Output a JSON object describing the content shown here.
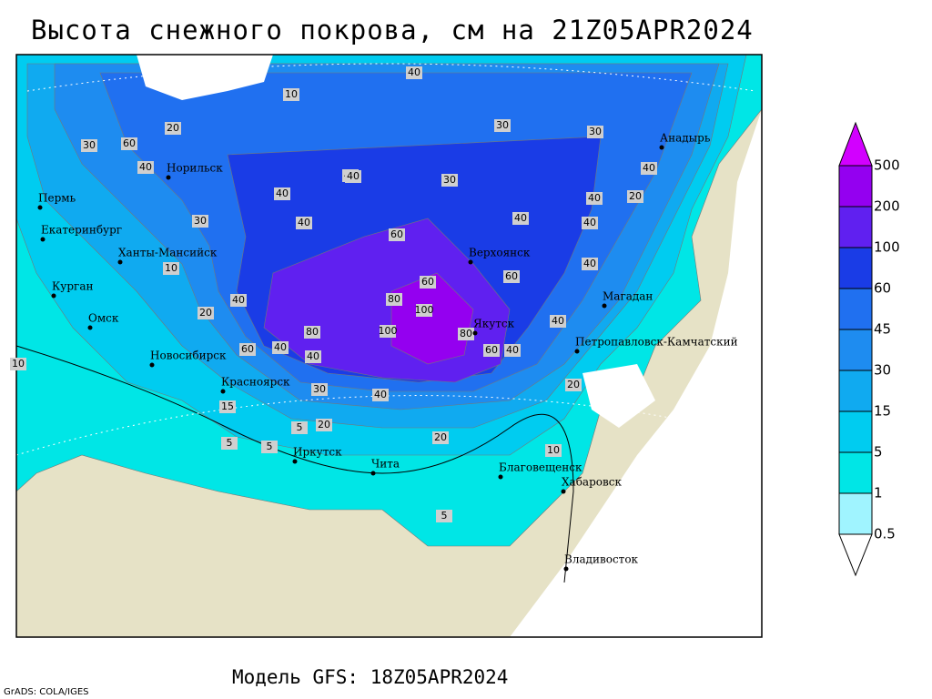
{
  "header": {
    "title": "Высота снежного покрова, см на 21Z05APR2024"
  },
  "footer": {
    "model": "Модель GFS: 18Z05APR2024",
    "credit": "GrADS: COLA/IGES"
  },
  "legend": {
    "levels": [
      0.5,
      1,
      5,
      15,
      30,
      45,
      60,
      100,
      200,
      500
    ],
    "colors": [
      "#ffffff",
      "#a0f4ff",
      "#00e6e6",
      "#00ccf0",
      "#10aaf0",
      "#1e8cf0",
      "#2070f0",
      "#1a3ce6",
      "#6020f0",
      "#9400f0",
      "#d200ff"
    ]
  },
  "map": {
    "cities": [
      "Норильск",
      "Пермь",
      "Екатеринбург",
      "Ханты-Мансийск",
      "Курган",
      "Омск",
      "Новосибирск",
      "Красноярск",
      "Иркутск",
      "Чита",
      "Благовещенск",
      "Хабаровск",
      "Владивосток",
      "Верхоянск",
      "Якутск",
      "Магадан",
      "Петропавловск-Камчатский",
      "Анадырь"
    ],
    "contour_labels": [
      40,
      10,
      20,
      30,
      40,
      60,
      40,
      40,
      30,
      40,
      40,
      60,
      40,
      30,
      40,
      40,
      60,
      80,
      100,
      60,
      80,
      100,
      80,
      60,
      40,
      40,
      60,
      40,
      30,
      40,
      20,
      20,
      10,
      5,
      5,
      20,
      10,
      5,
      5,
      40,
      40,
      30,
      40,
      20,
      10,
      15,
      40,
      20,
      30
    ]
  }
}
